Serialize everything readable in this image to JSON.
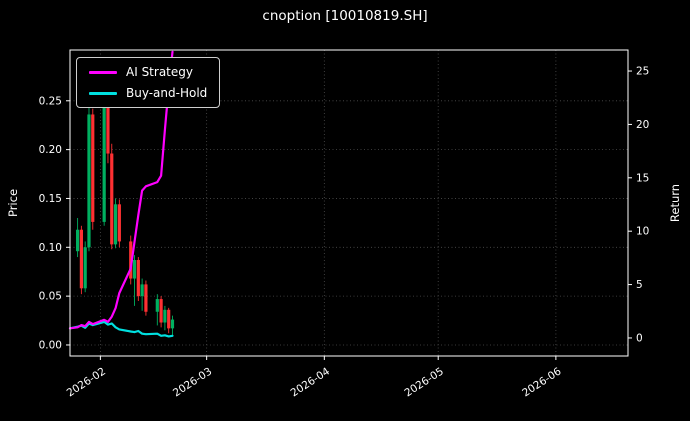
{
  "title": "cnoption [10010819.SH]",
  "chart_data": {
    "type": "candlestick+line",
    "title": "cnoption [10010819.SH]",
    "ylabel_left": "Price",
    "ylabel_right": "Return",
    "grid": true,
    "legend_position": "upper-left",
    "x_domain": [
      "2026-01-24",
      "2026-06-20"
    ],
    "price_lim": [
      -0.0113,
      0.302
    ],
    "return_lim": [
      -1.69,
      26.97
    ],
    "price_ticks": [
      0.0,
      0.05,
      0.1,
      0.15,
      0.2,
      0.25
    ],
    "return_ticks": [
      0,
      5,
      10,
      15,
      20,
      25
    ],
    "x_ticks": [
      {
        "date": "2026-02-01",
        "label": "2026-02"
      },
      {
        "date": "2026-03-01",
        "label": "2026-03"
      },
      {
        "date": "2026-04-01",
        "label": "2026-04"
      },
      {
        "date": "2026-05-01",
        "label": "2026-05"
      },
      {
        "date": "2026-06-01",
        "label": "2026-06"
      }
    ],
    "colors": {
      "background": "#000000",
      "text": "#ffffff",
      "spine": "#ffffff",
      "grid": "#4d4d4d",
      "up": "#00b060",
      "down": "#fe3032",
      "ai_strategy": "#ff00ff",
      "buy_and_hold": "#00e0e0"
    },
    "candles_format": [
      "date",
      "open",
      "high",
      "low",
      "close"
    ],
    "candles": [
      [
        "2026-01-26",
        0.096,
        0.13,
        0.09,
        0.118
      ],
      [
        "2026-01-27",
        0.118,
        0.122,
        0.052,
        0.058
      ],
      [
        "2026-01-28",
        0.058,
        0.106,
        0.054,
        0.1
      ],
      [
        "2026-01-29",
        0.1,
        0.258,
        0.096,
        0.236
      ],
      [
        "2026-01-30",
        0.236,
        0.242,
        0.118,
        0.126
      ],
      [
        "2026-02-02",
        0.126,
        0.256,
        0.122,
        0.246
      ],
      [
        "2026-02-03",
        0.246,
        0.25,
        0.186,
        0.196
      ],
      [
        "2026-02-04",
        0.196,
        0.206,
        0.098,
        0.103
      ],
      [
        "2026-02-05",
        0.103,
        0.15,
        0.099,
        0.144
      ],
      [
        "2026-02-06",
        0.144,
        0.149,
        0.1,
        0.106
      ],
      [
        "2026-02-09",
        0.106,
        0.112,
        0.062,
        0.068
      ],
      [
        "2026-02-10",
        0.068,
        0.092,
        0.04,
        0.087
      ],
      [
        "2026-02-11",
        0.087,
        0.09,
        0.045,
        0.05
      ],
      [
        "2026-02-12",
        0.05,
        0.068,
        0.035,
        0.062
      ],
      [
        "2026-02-13",
        0.062,
        0.066,
        0.03,
        0.034
      ],
      [
        "2026-02-16",
        0.034,
        0.052,
        0.02,
        0.047
      ],
      [
        "2026-02-17",
        0.047,
        0.05,
        0.018,
        0.023
      ],
      [
        "2026-02-18",
        0.023,
        0.04,
        0.015,
        0.036
      ],
      [
        "2026-02-19",
        0.036,
        0.038,
        0.012,
        0.017
      ],
      [
        "2026-02-20",
        0.017,
        0.03,
        0.01,
        0.026
      ]
    ],
    "series": [
      {
        "name": "AI Strategy",
        "axis": "return",
        "color": "#ff00ff",
        "points": [
          [
            "2026-01-24",
            0.9
          ],
          [
            "2026-01-26",
            1.0
          ],
          [
            "2026-01-27",
            1.2
          ],
          [
            "2026-01-28",
            1.1
          ],
          [
            "2026-01-29",
            1.5
          ],
          [
            "2026-01-30",
            1.3
          ],
          [
            "2026-02-02",
            1.7
          ],
          [
            "2026-02-03",
            1.5
          ],
          [
            "2026-02-04",
            2.0
          ],
          [
            "2026-02-05",
            2.8
          ],
          [
            "2026-02-06",
            4.2
          ],
          [
            "2026-02-09",
            6.5
          ],
          [
            "2026-02-10",
            9.0
          ],
          [
            "2026-02-11",
            11.5
          ],
          [
            "2026-02-12",
            13.8
          ],
          [
            "2026-02-13",
            14.2
          ],
          [
            "2026-02-16",
            14.6
          ],
          [
            "2026-02-17",
            15.2
          ],
          [
            "2026-02-18",
            19.5
          ],
          [
            "2026-02-19",
            23.5
          ],
          [
            "2026-02-20",
            26.8
          ]
        ]
      },
      {
        "name": "Buy-and-Hold",
        "axis": "return",
        "color": "#00e0e0",
        "points": [
          [
            "2026-01-24",
            0.9
          ],
          [
            "2026-01-26",
            1.05
          ],
          [
            "2026-01-27",
            1.15
          ],
          [
            "2026-01-28",
            0.95
          ],
          [
            "2026-01-29",
            1.35
          ],
          [
            "2026-01-30",
            1.2
          ],
          [
            "2026-02-02",
            1.5
          ],
          [
            "2026-02-03",
            1.25
          ],
          [
            "2026-02-04",
            1.35
          ],
          [
            "2026-02-05",
            1.0
          ],
          [
            "2026-02-06",
            0.8
          ],
          [
            "2026-02-09",
            0.6
          ],
          [
            "2026-02-10",
            0.55
          ],
          [
            "2026-02-11",
            0.65
          ],
          [
            "2026-02-12",
            0.4
          ],
          [
            "2026-02-13",
            0.35
          ],
          [
            "2026-02-16",
            0.4
          ],
          [
            "2026-02-17",
            0.2
          ],
          [
            "2026-02-18",
            0.25
          ],
          [
            "2026-02-19",
            0.15
          ],
          [
            "2026-02-20",
            0.2
          ]
        ]
      }
    ]
  }
}
